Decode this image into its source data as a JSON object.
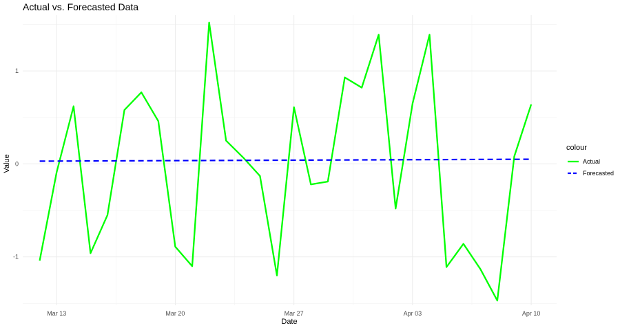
{
  "chart_data": {
    "type": "line",
    "title": "Actual vs. Forecasted Data",
    "xlabel": "Date",
    "ylabel": "Value",
    "x_start_day": 0,
    "x_ticks": [
      {
        "day": 1,
        "label": "Mar 13"
      },
      {
        "day": 8,
        "label": "Mar 20"
      },
      {
        "day": 15,
        "label": "Mar 27"
      },
      {
        "day": 22,
        "label": "Apr 03"
      },
      {
        "day": 29,
        "label": "Apr 10"
      }
    ],
    "xlim": [
      -1.0,
      30.5
    ],
    "ylim": [
      -1.52,
      1.6
    ],
    "y_ticks": [
      -1,
      0,
      1
    ],
    "y_minor": [
      -1.5,
      -0.5,
      0.5,
      1.5
    ],
    "grid": true,
    "legend": {
      "title": "colour",
      "position": "right"
    },
    "series": [
      {
        "name": "Actual",
        "color": "#00ff00",
        "style": "solid",
        "x_days": [
          0,
          1,
          2,
          3,
          4,
          5,
          6,
          7,
          8,
          9,
          10,
          11,
          12,
          13,
          14,
          15,
          16,
          17,
          18,
          19,
          20,
          21,
          22,
          23,
          24,
          25,
          26,
          27,
          28,
          29
        ],
        "values": [
          -1.04,
          -0.09,
          0.62,
          -0.96,
          -0.55,
          0.58,
          0.77,
          0.46,
          -0.89,
          -1.1,
          1.52,
          0.25,
          0.07,
          -0.13,
          -1.2,
          0.61,
          -0.22,
          -0.19,
          0.93,
          0.82,
          1.39,
          -0.48,
          0.65,
          1.39,
          -1.11,
          -0.86,
          -1.13,
          -1.47,
          0.08,
          0.64
        ]
      },
      {
        "name": "Forecasted",
        "color": "#0000ff",
        "style": "dashed",
        "x_days": [
          0,
          29
        ],
        "values": [
          0.03,
          0.05
        ]
      }
    ]
  }
}
